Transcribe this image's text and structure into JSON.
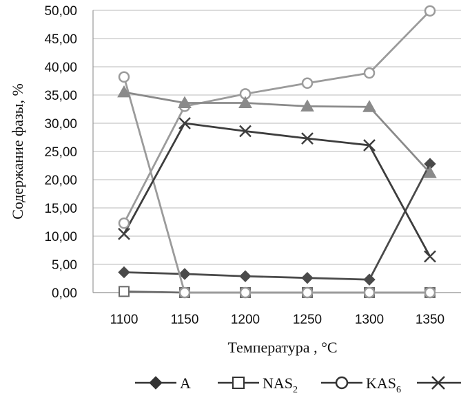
{
  "chart_data": {
    "type": "line",
    "x": [
      1100,
      1150,
      1200,
      1250,
      1300,
      1350
    ],
    "x_tick_labels": [
      "1100",
      "1150",
      "1200",
      "1250",
      "1300",
      "1350"
    ],
    "xlabel": "Температура ,  °С",
    "ylabel": "Содержание фазы, %",
    "ylim": [
      0,
      50
    ],
    "y_ticks": [
      0,
      5,
      10,
      15,
      20,
      25,
      30,
      35,
      40,
      45,
      50
    ],
    "y_tick_labels": [
      "0,00",
      "5,00",
      "10,00",
      "15,00",
      "20,00",
      "25,00",
      "30,00",
      "35,00",
      "40,00",
      "45,00",
      "50,00"
    ],
    "grid": true,
    "legend_position": "bottom",
    "series": [
      {
        "name": "A",
        "label_main": "A",
        "label_sub": "",
        "marker": "diamond",
        "color": "#4a4a4a",
        "values": [
          3.6,
          3.3,
          2.9,
          2.6,
          2.3,
          22.8
        ]
      },
      {
        "name": "NAS2",
        "label_main": "NAS",
        "label_sub": "2",
        "marker": "square",
        "color": "#6a6a6a",
        "values": [
          0.2,
          0.0,
          0.0,
          0.0,
          0.0,
          0.0
        ]
      },
      {
        "name": "KAS6",
        "label_main": "KAS",
        "label_sub": "6",
        "marker": "circle",
        "color": "#9b9b9b",
        "values": [
          38.2,
          0.0,
          0.0,
          0.0,
          0.0,
          0.0
        ]
      },
      {
        "name": "",
        "label_main": "",
        "label_sub": "",
        "marker": "x",
        "color": "#3d3d3d",
        "values": [
          10.4,
          30.0,
          28.6,
          27.3,
          26.1,
          6.4
        ]
      },
      {
        "name": "",
        "label_main": "",
        "label_sub": "",
        "marker": "circle",
        "color": "#9b9b9b",
        "values": [
          12.3,
          33.0,
          35.2,
          37.1,
          38.9,
          49.9
        ]
      },
      {
        "name": "",
        "label_main": "",
        "label_sub": "",
        "marker": "triangle",
        "color": "#8a8a8a",
        "values": [
          35.5,
          33.6,
          33.6,
          33.0,
          32.9,
          21.2
        ]
      }
    ]
  }
}
